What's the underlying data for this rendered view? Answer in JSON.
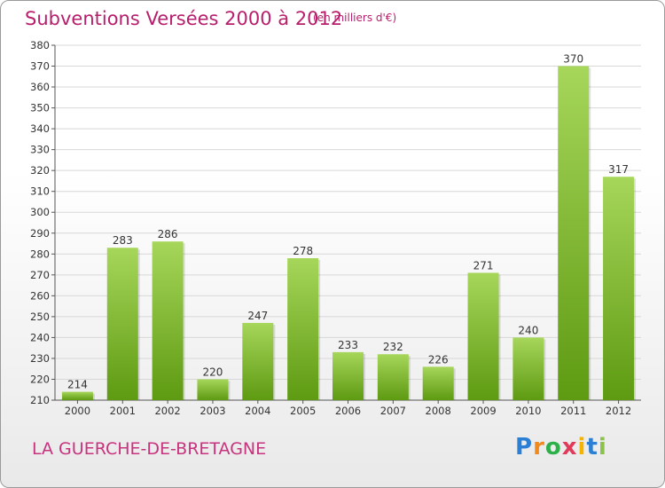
{
  "title": "Subventions Versées 2000 à 2012",
  "unit_note": "(en milliers d'€)",
  "place_name": "LA GUERCHE-DE-BRETAGNE",
  "logo": {
    "text": "Proxiti",
    "letters": [
      "P",
      "r",
      "o",
      "x",
      "i",
      "t",
      "i"
    ],
    "letter_colors": [
      "#2b7fd4",
      "#f08a1c",
      "#2bb04a",
      "#e23a5a",
      "#f4b400",
      "#2b7fd4",
      "#8bc34a"
    ]
  },
  "colors": {
    "bar_light": "#a6d65a",
    "bar_dark": "#5e9a12",
    "axis_text": "#333333",
    "title": "#b81e6c",
    "grid": "#d8d8d8"
  },
  "chart_data": {
    "type": "bar",
    "title": "Subventions Versées 2000 à 2012",
    "subtitle": "(en milliers d'€)",
    "categories": [
      "2000",
      "2001",
      "2002",
      "2003",
      "2004",
      "2005",
      "2006",
      "2007",
      "2008",
      "2009",
      "2010",
      "2011",
      "2012"
    ],
    "values": [
      214,
      283,
      286,
      220,
      247,
      278,
      233,
      232,
      226,
      271,
      240,
      370,
      317
    ],
    "ylim": [
      210,
      380
    ],
    "ytick_step": 10,
    "grid": true,
    "legend": "none",
    "xlabel": "",
    "ylabel": ""
  }
}
